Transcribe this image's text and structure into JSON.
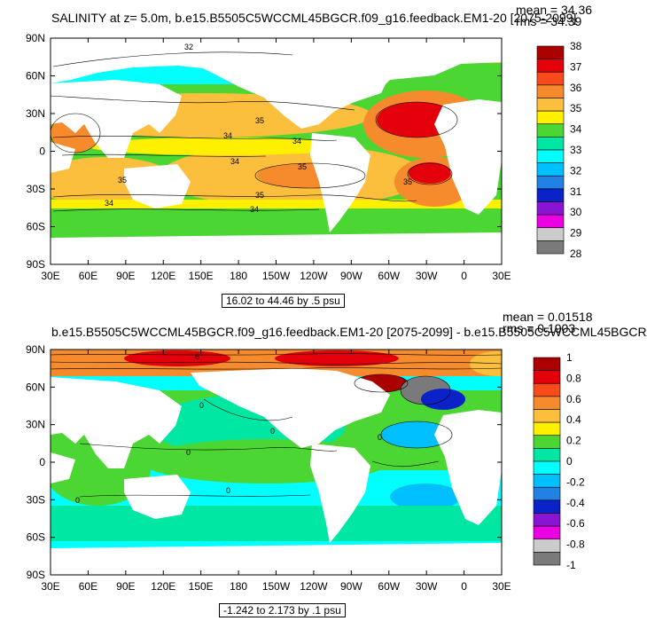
{
  "chart_data": [
    {
      "type": "heatmap",
      "title": "SALINITY at z=   5.0m, b.e15.B5505C5WCCML45BGCR.f09_g16.feedback.EM1-20 [2075-2099]",
      "mean_text": "mean = 34.36",
      "rms_text": "rms = 34.39",
      "range_text": "16.02 to 44.46 by .5 psu",
      "xlim": [
        30,
        390
      ],
      "ylim": [
        -90,
        90
      ],
      "x_ticks": [
        "30E",
        "60E",
        "90E",
        "120E",
        "150E",
        "180",
        "150W",
        "120W",
        "90W",
        "60W",
        "30W",
        "0",
        "30E"
      ],
      "y_ticks": [
        "90N",
        "60N",
        "30N",
        "0",
        "30S",
        "60S",
        "90S"
      ],
      "colorbar": {
        "labels": [
          "38",
          "37",
          "36",
          "35",
          "34",
          "33",
          "32",
          "31",
          "30",
          "29",
          "28"
        ],
        "colors": [
          "#aa0000",
          "#e4000b",
          "#f94a1c",
          "#f58b2c",
          "#fbbf3d",
          "#fff000",
          "#4cd634",
          "#00e7a4",
          "#01ffff",
          "#00bfff",
          "#2182e3",
          "#0a22c8",
          "#8b14d2",
          "#ea00e3",
          "#cccccc",
          "#7a7a7a"
        ]
      },
      "contour_labels": [
        "32",
        "35",
        "34",
        "34",
        "35",
        "34",
        "35",
        "35",
        "34",
        "35",
        "34"
      ]
    },
    {
      "type": "heatmap",
      "title": "b.e15.B5505C5WCCML45BGCR.f09_g16.feedback.EM1-20 [2075-2099] - b.e15.B5505C5WCCML45BGCR",
      "mean_text": "mean = 0.01518",
      "rms_text": "rms = 0.1903",
      "range_text": "-1.242 to 2.173 by .1 psu",
      "xlim": [
        30,
        390
      ],
      "ylim": [
        -90,
        90
      ],
      "x_ticks": [
        "30E",
        "60E",
        "90E",
        "120E",
        "150E",
        "180",
        "150W",
        "120W",
        "90W",
        "60W",
        "30W",
        "0",
        "30E"
      ],
      "y_ticks": [
        "90N",
        "60N",
        "30N",
        "0",
        "30S",
        "60S",
        "90S"
      ],
      "colorbar": {
        "labels": [
          "1",
          "0.8",
          "0.6",
          "0.4",
          "0.2",
          "0",
          "-0.2",
          "-0.4",
          "-0.6",
          "-0.8",
          "-1"
        ],
        "colors": [
          "#aa0000",
          "#e4000b",
          "#f94a1c",
          "#f58b2c",
          "#fbbf3d",
          "#fff000",
          "#4cd634",
          "#00e7a4",
          "#01ffff",
          "#00bfff",
          "#2182e3",
          "#0a22c8",
          "#8b14d2",
          "#ea00e3",
          "#cccccc",
          "#7a7a7a"
        ]
      },
      "contour_labels": [
        "6",
        "0",
        "0",
        "0",
        "0",
        "0",
        "0"
      ]
    }
  ]
}
